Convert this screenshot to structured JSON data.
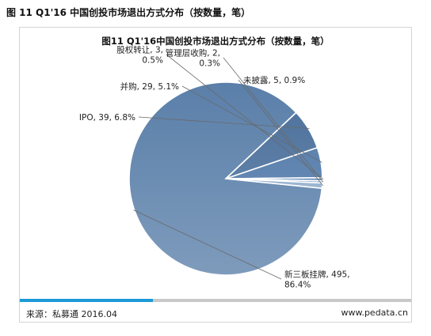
{
  "figure_title": "图 11 Q1'16 中国创投市场退出方式分布（按数量，笔）",
  "source": "来源：私募通 2016.04",
  "website": "www.pedata.cn",
  "accent_color": "#1c9ad6",
  "chart_data": {
    "type": "pie",
    "title": "图11 Q1'16中国创投市场退出方式分布（按数量，笔）",
    "slices": [
      {
        "label": "新三板挂牌",
        "value": 495,
        "percent": "86.4%",
        "color": "#5a7fa9",
        "label_text": [
          "新三板挂牌, 495,",
          "86.4%"
        ]
      },
      {
        "label": "IPO",
        "value": 39,
        "percent": "6.8%",
        "color": "#4a6f9b",
        "label_text": [
          "IPO, 39, 6.8%"
        ]
      },
      {
        "label": "并购",
        "value": 29,
        "percent": "5.1%",
        "color": "#4f78a8",
        "label_text": [
          "并购, 29, 5.1%"
        ]
      },
      {
        "label": "股权转让",
        "value": 3,
        "percent": "0.5%",
        "color": "#5581b3",
        "label_text": [
          "股权转让, 3,",
          "0.5%"
        ]
      },
      {
        "label": "管理层收购",
        "value": 2,
        "percent": "0.3%",
        "color": "#6a8fbd",
        "label_text": [
          "管理层收购, 2,",
          "0.3%"
        ]
      },
      {
        "label": "未披露",
        "value": 5,
        "percent": "0.9%",
        "color": "#8faccc",
        "label_text": [
          "未披露, 5, 0.9%"
        ]
      }
    ]
  }
}
